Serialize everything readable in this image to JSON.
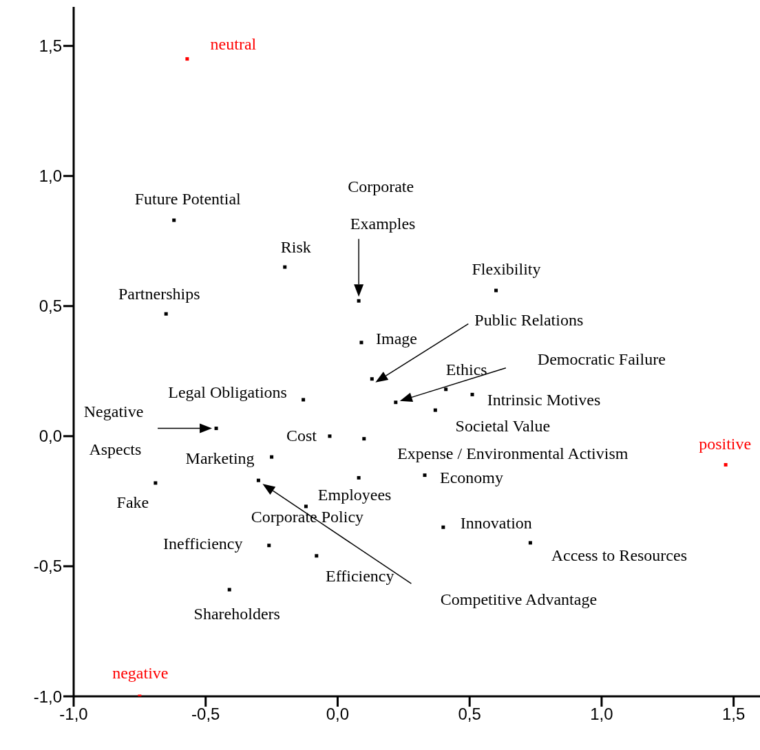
{
  "chart_data": {
    "type": "scatter",
    "series": [
      {
        "color": "#000000",
        "x": [
          -0.62,
          -0.2,
          -0.65,
          0.08,
          0.6,
          0.09,
          0.13,
          0.22,
          0.41,
          0.51,
          0.37,
          -0.13,
          -0.46,
          -0.03,
          0.1,
          -0.25,
          -0.3,
          -0.69,
          0.08,
          0.33,
          -0.12,
          0.4,
          0.73,
          -0.26,
          -0.08,
          -0.41
        ],
        "values": [
          0.83,
          0.65,
          0.47,
          0.52,
          0.56,
          0.36,
          0.22,
          0.13,
          0.18,
          0.16,
          0.1,
          0.14,
          0.03,
          0.0,
          -0.01,
          -0.08,
          -0.17,
          -0.18,
          -0.16,
          -0.15,
          -0.27,
          -0.35,
          -0.41,
          -0.42,
          -0.46,
          -0.59
        ]
      },
      {
        "color": "#ff0000",
        "x": [
          -0.57,
          1.47,
          -0.75
        ],
        "values": [
          1.45,
          -0.11,
          -1.0
        ]
      }
    ],
    "xlim": [
      -1.0,
      1.6
    ],
    "ylim": [
      -1.0,
      1.65
    ],
    "xticks": [
      {
        "value": -1.0,
        "label": "-1,0"
      },
      {
        "value": -0.5,
        "label": "-0,5"
      },
      {
        "value": 0,
        "label": "0,0"
      },
      {
        "value": 0.5,
        "label": "0,5"
      },
      {
        "value": 1.0,
        "label": "1,0"
      },
      {
        "value": 1.5,
        "label": "1,5"
      }
    ],
    "yticks": [
      {
        "value": -1.0,
        "label": "-1,0"
      },
      {
        "value": -0.5,
        "label": "-0,5"
      },
      {
        "value": 0,
        "label": "0,0"
      },
      {
        "value": 0.5,
        "label": "0,5"
      },
      {
        "value": 1.0,
        "label": "1,0"
      },
      {
        "value": 1.5,
        "label": "1,5"
      }
    ],
    "marker": "square",
    "annotations": [
      {
        "text": "Future Potential",
        "x": -0.62,
        "y": 0.83
      },
      {
        "text": "Risk",
        "x": -0.2,
        "y": 0.65
      },
      {
        "text": "Partnerships",
        "x": -0.65,
        "y": 0.47
      },
      "Corporate Examples",
      {
        "text": "Flexibility",
        "x": 0.6,
        "y": 0.56
      },
      {
        "text": "Image",
        "x": 0.09,
        "y": 0.36
      },
      "Public Relations",
      "Democratic Failure",
      {
        "text": "Ethics",
        "x": 0.41,
        "y": 0.18
      },
      {
        "text": "Intrinsic Motives",
        "x": 0.51,
        "y": 0.16
      },
      {
        "text": "Societal Value",
        "x": 0.37,
        "y": 0.1
      },
      {
        "text": "Legal Obligations",
        "x": -0.13,
        "y": 0.14
      },
      "Negative Aspects",
      {
        "text": "Cost",
        "x": -0.03,
        "y": 0.0
      },
      {
        "text": "Expense / Environmental Activism",
        "x": 0.1,
        "y": -0.01
      },
      {
        "text": "Marketing",
        "x": -0.25,
        "y": -0.08
      },
      "Competitive Advantage",
      {
        "text": "Fake",
        "x": -0.69,
        "y": -0.18
      },
      {
        "text": "Employees",
        "x": 0.08,
        "y": -0.16
      },
      {
        "text": "Economy",
        "x": 0.33,
        "y": -0.15
      },
      {
        "text": "Corporate Policy",
        "x": -0.12,
        "y": -0.27
      },
      {
        "text": "Innovation",
        "x": 0.4,
        "y": -0.35
      },
      {
        "text": "Access to Resources",
        "x": 0.73,
        "y": -0.41
      },
      {
        "text": "Inefficiency",
        "x": -0.26,
        "y": -0.42
      },
      {
        "text": "Efficiency",
        "x": -0.08,
        "y": -0.46
      },
      {
        "text": "Shareholders",
        "x": -0.41,
        "y": -0.59
      },
      {
        "text": "neutral",
        "x": -0.57,
        "y": 1.45
      },
      {
        "text": "positive",
        "x": 1.47,
        "y": -0.11
      },
      {
        "text": "negative",
        "x": -0.75,
        "y": -1.0
      }
    ]
  }
}
